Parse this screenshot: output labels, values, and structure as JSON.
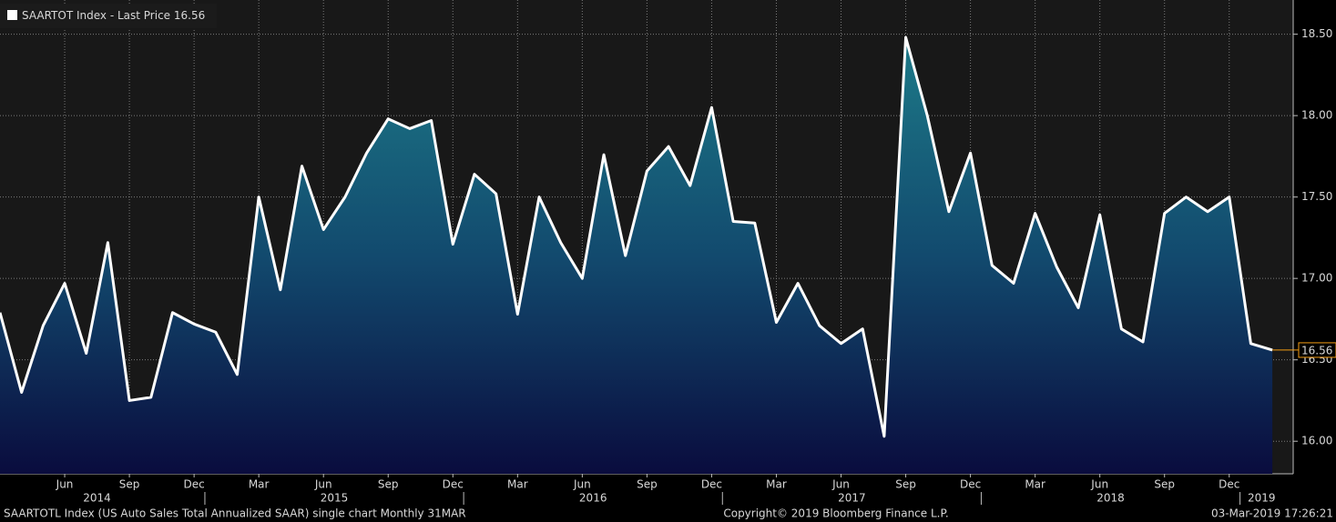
{
  "chart_data": {
    "type": "area",
    "footer_left": "SAARTOTL Index (US Auto Sales Total Annualized SAAR) single chart  Monthly 31MAR",
    "footer_center": "Copyright© 2019 Bloomberg Finance L.P.",
    "footer_right": "03-Mar-2019 17:26:21",
    "categories": [
      null,
      null,
      null,
      "Jun",
      null,
      null,
      "Sep",
      null,
      null,
      "Dec",
      null,
      null,
      "Mar",
      null,
      null,
      "Jun",
      null,
      null,
      "Sep",
      null,
      null,
      "Dec",
      null,
      null,
      "Mar",
      null,
      null,
      "Jun",
      null,
      null,
      "Sep",
      null,
      null,
      "Dec",
      null,
      null,
      "Mar",
      null,
      null,
      "Jun",
      null,
      null,
      "Sep",
      null,
      null,
      "Dec",
      null,
      null,
      "Mar",
      null,
      null,
      "Jun",
      null,
      null,
      "Sep",
      null,
      null,
      "Dec",
      null,
      null
    ],
    "years": [
      "2014",
      "2015",
      "2016",
      "2017",
      "2018",
      "2019"
    ],
    "series": [
      {
        "name": "SAARTOT Index - Last Price",
        "color": "#ffffff",
        "values": [
          16.79,
          16.3,
          16.71,
          16.97,
          16.54,
          17.22,
          16.25,
          16.27,
          16.79,
          16.72,
          16.67,
          16.41,
          17.5,
          16.93,
          17.69,
          17.3,
          17.5,
          17.77,
          17.98,
          17.92,
          17.97,
          17.21,
          17.64,
          17.52,
          16.78,
          17.5,
          17.22,
          17.0,
          17.76,
          17.14,
          17.66,
          17.81,
          17.57,
          18.05,
          17.35,
          17.34,
          16.73,
          16.97,
          16.71,
          16.6,
          16.69,
          16.03,
          18.48,
          18.0,
          17.41,
          17.77,
          17.08,
          16.97,
          17.4,
          17.07,
          16.82,
          17.39,
          16.69,
          16.61,
          17.4,
          17.5,
          17.41,
          17.5,
          16.6,
          16.56
        ]
      }
    ],
    "last_price_color": "#f39c12",
    "ylim": [
      15.8,
      18.71
    ],
    "yticks": [
      {
        "value": 16,
        "label": "16.00"
      },
      {
        "value": 16.5,
        "label": "16.50"
      },
      {
        "value": 17,
        "label": "17.00"
      },
      {
        "value": 17.5,
        "label": "17.50"
      },
      {
        "value": 18,
        "label": "18.00"
      },
      {
        "value": 18.5,
        "label": "18.50"
      }
    ],
    "grid": true
  }
}
